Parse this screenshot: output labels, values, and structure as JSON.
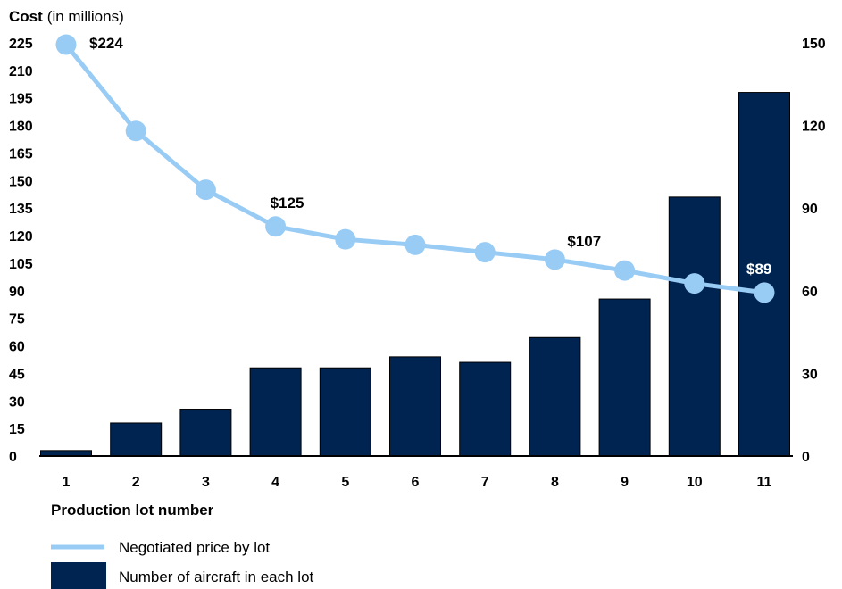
{
  "chart_data": {
    "type": "bar",
    "title_bold": "Cost",
    "title_rest": "(in millions)",
    "xlabel": "Production lot number",
    "categories": [
      "1",
      "2",
      "3",
      "4",
      "5",
      "6",
      "7",
      "8",
      "9",
      "10",
      "11"
    ],
    "left_axis": {
      "range": [
        0,
        225
      ],
      "ticks": [
        "225",
        "210",
        "195",
        "180",
        "165",
        "150",
        "135",
        "120",
        "105",
        "90",
        "75",
        "60",
        "45",
        "30",
        "15",
        "0"
      ]
    },
    "right_axis": {
      "range": [
        0,
        150
      ],
      "ticks": [
        "150",
        "120",
        "90",
        "60",
        "30",
        "0"
      ]
    },
    "series": [
      {
        "name": "Number of aircraft in each lot",
        "type": "bar",
        "axis": "right",
        "color": "#002452",
        "values": [
          2,
          12,
          17,
          32,
          32,
          36,
          34,
          43,
          57,
          94,
          132
        ]
      },
      {
        "name": "Negotiated price by lot",
        "type": "line",
        "axis": "left",
        "color": "#99ccf5",
        "values": [
          224,
          177,
          145,
          125,
          118,
          115,
          111,
          107,
          101,
          94,
          89
        ]
      }
    ],
    "data_labels": [
      {
        "index": 0,
        "text": "$224",
        "color": "#000000"
      },
      {
        "index": 3,
        "text": "$125",
        "color": "#000000"
      },
      {
        "index": 7,
        "text": "$107",
        "color": "#000000"
      },
      {
        "index": 10,
        "text": "$89",
        "color": "#ffffff"
      }
    ],
    "legend": [
      {
        "kind": "line",
        "text": "Negotiated price by lot"
      },
      {
        "kind": "bar",
        "text": "Number of aircraft in each lot"
      }
    ]
  }
}
